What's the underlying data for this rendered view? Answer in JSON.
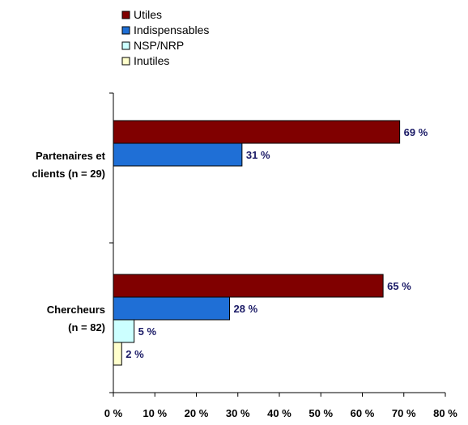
{
  "chart_data": {
    "type": "bar",
    "orientation": "horizontal",
    "categories": [
      {
        "lines": [
          "Partenaires et",
          "clients (n = 29)"
        ]
      },
      {
        "lines": [
          "Chercheurs",
          "(n = 82)"
        ]
      }
    ],
    "series": [
      {
        "name": "Utiles",
        "color": "#800000",
        "values": [
          69,
          65
        ],
        "labels": [
          "69 %",
          "65 %"
        ]
      },
      {
        "name": "Indispensables",
        "color": "#1f6fd6",
        "values": [
          31,
          28
        ],
        "labels": [
          "31 %",
          "28 %"
        ]
      },
      {
        "name": "NSP/NRP",
        "color": "#ccffff",
        "values": [
          null,
          5
        ],
        "labels": [
          "",
          "5 %"
        ]
      },
      {
        "name": "Inutiles",
        "color": "#ffffcc",
        "values": [
          null,
          2
        ],
        "labels": [
          "",
          "2 %"
        ]
      }
    ],
    "xlim": [
      0,
      80
    ],
    "x_ticks": [
      "0 %",
      "10 %",
      "20 %",
      "30 %",
      "40 %",
      "50 %",
      "60 %",
      "70 %",
      "80 %"
    ],
    "legend_position": "top-left",
    "grid": false
  }
}
